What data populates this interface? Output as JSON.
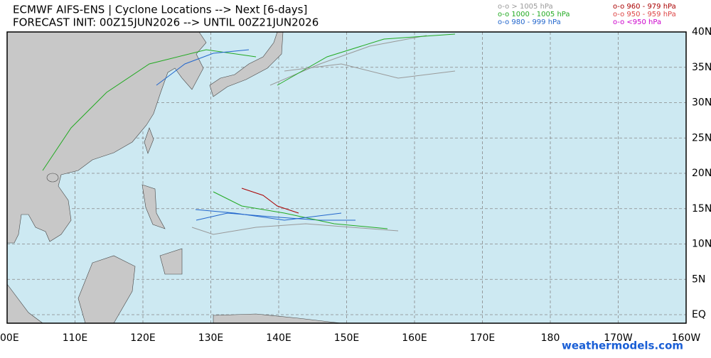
{
  "header": {
    "title": "ECMWF AIFS-ENS | Cyclone Locations --> Next [6-days]",
    "subtitle": "FORECAST INIT: 00Z15JUN2026 --> UNTIL 00Z21JUN2026"
  },
  "legend": [
    {
      "label": "o-o > 1005 hPa",
      "color": "#999999"
    },
    {
      "label": "o-o 1000 - 1005 hPa",
      "color": "#22aa22"
    },
    {
      "label": "o-o 980 - 999 hPa",
      "color": "#2266cc"
    },
    {
      "label": "o-o 960 - 979 hPa",
      "color": "#aa0000"
    },
    {
      "label": "o-o 950 - 959 hPa",
      "color": "#dd4444"
    },
    {
      "label": "o-o <950 hPa",
      "color": "#cc00cc"
    }
  ],
  "lat_labels": [
    "40N",
    "35N",
    "30N",
    "25N",
    "20N",
    "15N",
    "10N",
    "5N",
    "EQ"
  ],
  "lon_labels": [
    "00E",
    "110E",
    "120E",
    "130E",
    "140E",
    "150E",
    "160E",
    "170E",
    "180",
    "170W",
    "160W"
  ],
  "watermark": "weathermodels.com"
}
